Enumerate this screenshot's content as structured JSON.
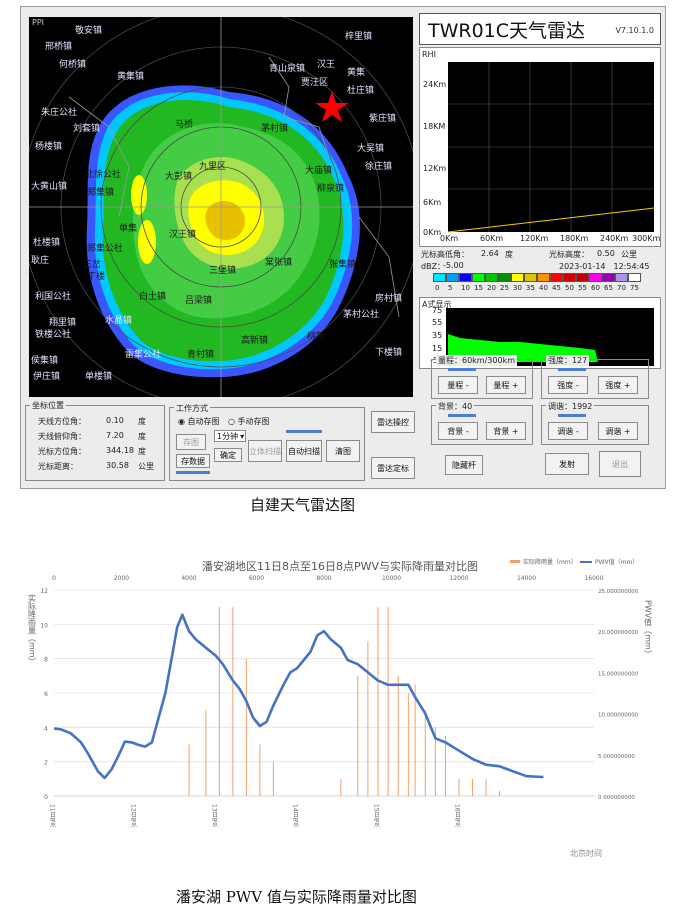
{
  "radar_app": {
    "ppi_label": "PPI",
    "towns": [
      "敬安镇",
      "邢桥镇",
      "何桥镇",
      "黄集镇",
      "梓里镇",
      "杜庄镇",
      "朱庄公社",
      "刘套镇",
      "杨楼镇",
      "马桥",
      "茅村镇",
      "大吴镇",
      "徐庄镇",
      "北徐公社",
      "大彭镇",
      "九里区",
      "大庙镇",
      "柳泉镇",
      "大黄山镇",
      "郑集镇",
      "单集",
      "汉王镇",
      "三堡镇",
      "棠张镇",
      "张集镇",
      "杜楼镇",
      "郑集公社",
      "丁楼",
      "白土镇",
      "吕梁镇",
      "房村镇",
      "茅村公社",
      "利国公社",
      "翔里镇",
      "水晶镇",
      "铁楼公社",
      "伊庄镇",
      "高新镇",
      "雷集公社",
      "下楼镇",
      "侯集镇",
      "单楼镇",
      "青村镇",
      "耿庄",
      "黄集",
      "贾汪区",
      "青山泉镇",
      "紫庄镇",
      "汉王",
      "柳新",
      "三岔"
    ],
    "title": "TWR01C天气雷达",
    "version": "V7.10.1.0",
    "height_chart": {
      "label": "RHI",
      "y_ticks": [
        "24Km",
        "18KM",
        "12Km",
        "6Km",
        "0Km"
      ],
      "x_ticks": [
        "0Km",
        "60Km",
        "120Km",
        "180Km",
        "240Km",
        "300Km"
      ]
    },
    "elevation_label": "光标高低角：",
    "elevation_value": "2.64",
    "elevation_unit": "度",
    "cursor_height_label": "光标高度：",
    "cursor_height_value": "0.50",
    "cursor_height_unit": "公里",
    "dbz_label": "dBZ：",
    "dbz_value": "-5.00",
    "timestamp": "2023-01-14　12:54:45",
    "color_scale": {
      "values": [
        "0",
        "5",
        "10",
        "15",
        "20",
        "25",
        "30",
        "35",
        "40",
        "45",
        "50",
        "55",
        "60",
        "65",
        "70",
        "75"
      ],
      "colors": [
        "#00e4ff",
        "#00a0f5",
        "#0000f6",
        "#00ff00",
        "#00c800",
        "#009000",
        "#ffff00",
        "#e7c000",
        "#ff9000",
        "#ff0000",
        "#d60000",
        "#c00000",
        "#ff00f0",
        "#9600b4",
        "#ad90f0",
        "#ffffff"
      ]
    },
    "ascope": {
      "label": "A式显示",
      "y_ticks": [
        "75",
        "55",
        "35",
        "15",
        "-5"
      ]
    },
    "coord_panel": {
      "title": "坐标位置",
      "rows": [
        {
          "label": "天线方位角：",
          "value": "0.10",
          "unit": "度"
        },
        {
          "label": "天线俯仰角：",
          "value": "7.20",
          "unit": "度"
        },
        {
          "label": "光标方位角：",
          "value": "344.18",
          "unit": "度"
        },
        {
          "label": "光标距离：",
          "value": "30.58",
          "unit": "公里"
        }
      ]
    },
    "work_mode": {
      "title": "工作方式",
      "auto_label": "自动存图",
      "manual_label": "手动存图",
      "interval_value": "1分钟",
      "btn_save_img": "存图",
      "btn_save_data": "存数据",
      "btn_confirm": "确定",
      "btn_standard": "立体扫描",
      "btn_auto_scan": "自动扫描",
      "btn_clear": "清图"
    },
    "radar_ctrl_btn": "雷达操控",
    "radar_stop_btn": "雷达定标",
    "range_group": {
      "label": "量程：60km/300km",
      "minus": "量程 -",
      "plus": "量程 +"
    },
    "bright_group": {
      "label": "强度：127",
      "minus": "强度 -",
      "plus": "强度 +"
    },
    "bg_group": {
      "label": "背景：40",
      "minus": "背景 -",
      "plus": "背景 +"
    },
    "tune_group": {
      "label": "调谐：1992",
      "minus": "调谐 -",
      "plus": "调谐 +"
    },
    "btn_hide": "隐藏杆",
    "btn_launch": "发射",
    "btn_exit": "退出"
  },
  "caption_1": "自建天气雷达图",
  "pwv_chart": {
    "title": "潘安湖地区11日8点至16日8点PWV与实际降雨量对比图",
    "legend_rain": "实际降雨量（mm）",
    "legend_pwv": "PWV值（mm）",
    "left_axis_label": "实际降雨量（mm）",
    "right_axis_label": "PWV值（mm）",
    "left_ticks": [
      "0",
      "2",
      "4",
      "6",
      "8",
      "10",
      "12"
    ],
    "right_ticks": [
      "0.000000000",
      "5.000000000",
      "10.000000000",
      "15.000000000",
      "20.000000000",
      "25.000000000"
    ],
    "top_ticks": [
      "0",
      "2000",
      "4000",
      "6000",
      "8000",
      "10000",
      "12000",
      "14000",
      "16000"
    ],
    "x_labels": [
      "11日8点",
      "12日8点",
      "13日8点",
      "14日8点",
      "15日8点",
      "16日8点"
    ],
    "xlabel": "北京时间"
  },
  "caption_2": "潘安湖 PWV 值与实际降雨量对比图",
  "chart_data": {
    "type": "line",
    "title": "潘安湖地区11日8点至16日8点PWV与实际降雨量对比图",
    "xlabel": "北京时间",
    "ylabel_left": "实际降雨量（mm）",
    "ylabel_right": "PWV值（mm）",
    "ylim_left": [
      0,
      12
    ],
    "ylim_right": [
      0,
      25
    ],
    "x_top_range": [
      0,
      16000
    ],
    "legend": "top-right",
    "series": [
      {
        "name": "PWV值（mm）",
        "x": [
          0,
          200,
          500,
          800,
          1000,
          1300,
          1500,
          1700,
          1900,
          2100,
          2300,
          2500,
          2700,
          2900,
          3100,
          3300,
          3500,
          3650,
          3800,
          4000,
          4200,
          4500,
          4800,
          5000,
          5300,
          5500,
          5700,
          5900,
          6100,
          6300,
          6500,
          6800,
          7000,
          7200,
          7400,
          7600,
          7800,
          8000,
          8200,
          8500,
          8700,
          9000,
          9300,
          9600,
          9900,
          10200,
          10500,
          10700,
          11000,
          11300,
          11600,
          12000,
          12400,
          12800,
          13200,
          13600,
          14000,
          14500
        ],
        "values": [
          8.2,
          8.1,
          7.6,
          6.5,
          5.2,
          3.0,
          2.2,
          3.2,
          4.8,
          6.6,
          6.5,
          6.2,
          6.0,
          6.5,
          9.5,
          12.5,
          17.0,
          20.5,
          22.0,
          20.0,
          19.0,
          18.0,
          17.0,
          16.0,
          14.0,
          13.0,
          11.5,
          9.5,
          8.5,
          9.0,
          11.0,
          13.5,
          15.0,
          15.5,
          16.5,
          17.5,
          19.5,
          20.0,
          19.0,
          18.0,
          16.5,
          16.0,
          15.0,
          14.0,
          13.5,
          13.5,
          13.5,
          12.0,
          10.0,
          7.0,
          6.5,
          5.5,
          4.5,
          3.8,
          3.6,
          3.0,
          2.4,
          2.3
        ]
      },
      {
        "name": "实际降雨量（mm）",
        "x": [
          4000,
          4500,
          4900,
          5300,
          5700,
          6100,
          6500,
          8500,
          9000,
          9300,
          9600,
          9900,
          10200,
          10500,
          10700,
          11000,
          11300,
          11600,
          12000,
          12400,
          12800,
          13200
        ],
        "values": [
          3.0,
          5.0,
          11.0,
          11.0,
          8.0,
          3.0,
          2.0,
          1.0,
          7.0,
          9.0,
          11.0,
          11.0,
          7.0,
          6.0,
          6.5,
          5.0,
          4.0,
          3.5,
          1.0,
          1.0,
          1.0,
          0.3
        ]
      }
    ]
  }
}
